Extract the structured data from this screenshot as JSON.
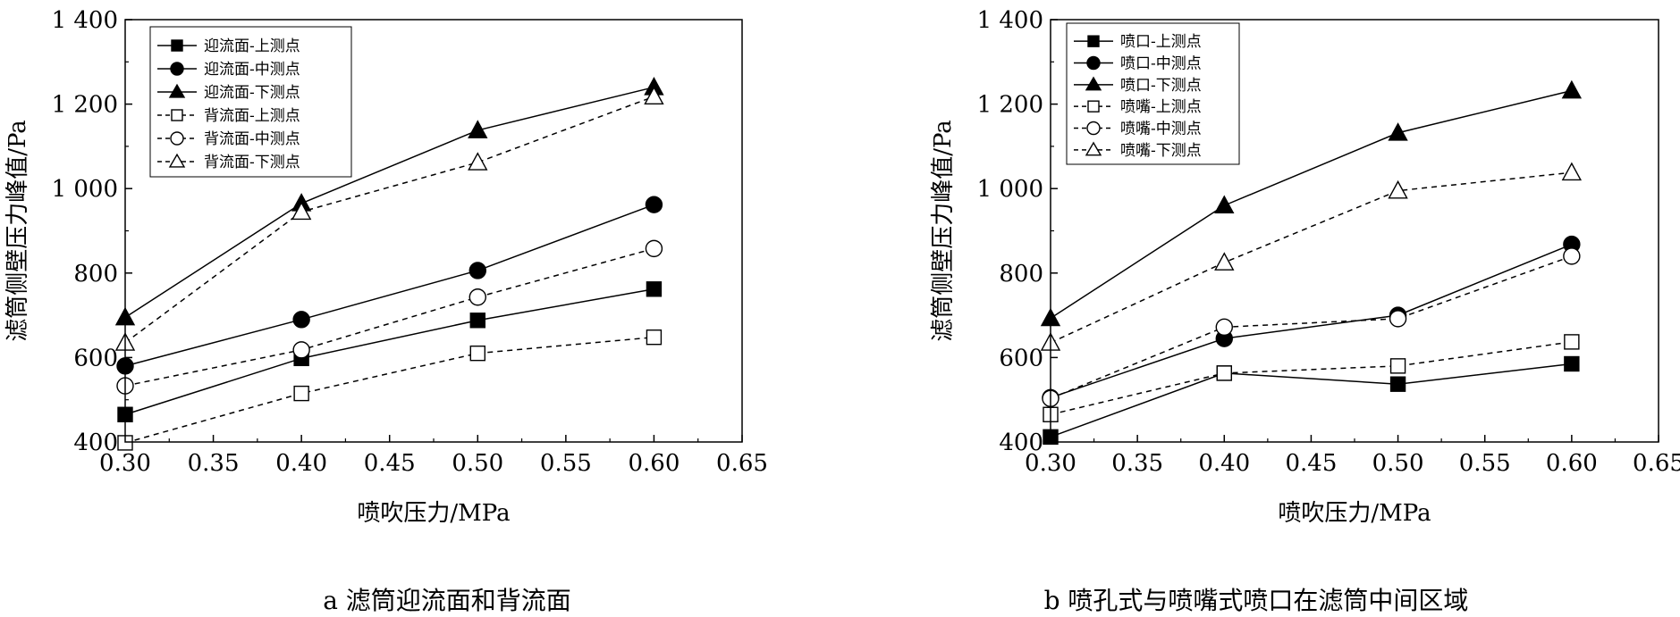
{
  "chart_data": [
    {
      "type": "line",
      "caption": "a 滤筒迎流面和背流面",
      "xlabel": "喷吹压力/MPa",
      "ylabel": "滤筒侧壁压力峰值/Pa",
      "xlim": [
        0.3,
        0.65
      ],
      "ylim": [
        400,
        1400
      ],
      "x_ticks": [
        "0.30",
        "0.35",
        "0.40",
        "0.45",
        "0.50",
        "0.55",
        "0.60",
        "0.65"
      ],
      "y_ticks": [
        "400",
        "600",
        "800",
        "1 000",
        "1 200",
        "1 400"
      ],
      "legend_position": "top-left",
      "x": [
        0.3,
        0.4,
        0.5,
        0.6
      ],
      "series": [
        {
          "name": "迎流面-上测点",
          "marker": "square",
          "filled": true,
          "dashed": false,
          "values": [
            465,
            598,
            688,
            762
          ]
        },
        {
          "name": "迎流面-中测点",
          "marker": "circle",
          "filled": true,
          "dashed": false,
          "values": [
            580,
            690,
            806,
            962
          ]
        },
        {
          "name": "迎流面-下测点",
          "marker": "triangle",
          "filled": true,
          "dashed": false,
          "values": [
            695,
            965,
            1138,
            1240
          ]
        },
        {
          "name": "背流面-上测点",
          "marker": "square",
          "filled": false,
          "dashed": true,
          "values": [
            398,
            515,
            610,
            648
          ]
        },
        {
          "name": "背流面-中测点",
          "marker": "circle",
          "filled": false,
          "dashed": true,
          "values": [
            533,
            618,
            743,
            858
          ]
        },
        {
          "name": "背流面-下测点",
          "marker": "triangle",
          "filled": false,
          "dashed": true,
          "values": [
            635,
            945,
            1062,
            1218
          ]
        }
      ]
    },
    {
      "type": "line",
      "caption": "b 喷孔式与喷嘴式喷口在滤筒中间区域",
      "xlabel": "喷吹压力/MPa",
      "ylabel": "滤筒侧壁压力峰值/Pa",
      "xlim": [
        0.3,
        0.65
      ],
      "ylim": [
        400,
        1400
      ],
      "x_ticks": [
        "0.30",
        "0.35",
        "0.40",
        "0.45",
        "0.50",
        "0.55",
        "0.60",
        "0.65"
      ],
      "y_ticks": [
        "400",
        "600",
        "800",
        "1 000",
        "1 200",
        "1 400"
      ],
      "legend_position": "top-left",
      "x": [
        0.3,
        0.4,
        0.5,
        0.6
      ],
      "series": [
        {
          "name": "喷口-上测点",
          "marker": "square",
          "filled": true,
          "dashed": false,
          "values": [
            412,
            563,
            537,
            585
          ]
        },
        {
          "name": "喷口-中测点",
          "marker": "circle",
          "filled": true,
          "dashed": false,
          "values": [
            505,
            645,
            700,
            868
          ]
        },
        {
          "name": "喷口-下测点",
          "marker": "triangle",
          "filled": true,
          "dashed": false,
          "values": [
            693,
            960,
            1132,
            1232
          ]
        },
        {
          "name": "喷嘴-上测点",
          "marker": "square",
          "filled": false,
          "dashed": true,
          "values": [
            465,
            563,
            580,
            637
          ]
        },
        {
          "name": "喷嘴-中测点",
          "marker": "circle",
          "filled": false,
          "dashed": true,
          "values": [
            503,
            672,
            692,
            840
          ]
        },
        {
          "name": "喷嘴-下测点",
          "marker": "triangle",
          "filled": false,
          "dashed": true,
          "values": [
            635,
            825,
            995,
            1038
          ]
        }
      ]
    }
  ]
}
